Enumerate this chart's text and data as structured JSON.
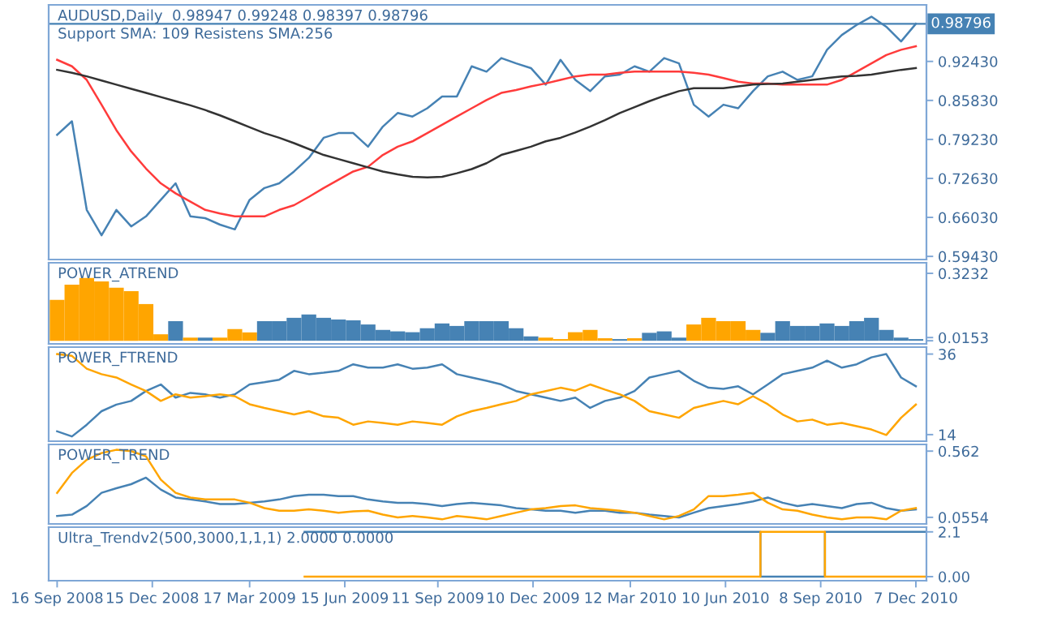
{
  "chart_data": [
    {
      "type": "line",
      "title": "AUDUSD,Daily  0.98947 0.99248 0.98397 0.98796",
      "subtitle": "Support SMA: 109 Resistens SMA:256",
      "x": [
        "2008-09-16",
        "2008-09-30",
        "2008-10-14",
        "2008-10-28",
        "2008-11-11",
        "2008-11-25",
        "2008-12-09",
        "2008-12-23",
        "2009-01-06",
        "2009-01-20",
        "2009-02-03",
        "2009-02-17",
        "2009-03-03",
        "2009-03-17",
        "2009-03-31",
        "2009-04-14",
        "2009-04-28",
        "2009-05-12",
        "2009-05-26",
        "2009-06-09",
        "2009-06-23",
        "2009-07-07",
        "2009-07-21",
        "2009-08-04",
        "2009-08-18",
        "2009-09-01",
        "2009-09-15",
        "2009-09-29",
        "2009-10-13",
        "2009-10-27",
        "2009-11-10",
        "2009-11-24",
        "2009-12-08",
        "2009-12-22",
        "2010-01-05",
        "2010-01-19",
        "2010-02-02",
        "2010-02-16",
        "2010-03-02",
        "2010-03-16",
        "2010-03-30",
        "2010-04-13",
        "2010-04-27",
        "2010-05-11",
        "2010-05-25",
        "2010-06-08",
        "2010-06-22",
        "2010-07-06",
        "2010-07-20",
        "2010-08-03",
        "2010-08-17",
        "2010-08-31",
        "2010-09-14",
        "2010-09-28",
        "2010-10-12",
        "2010-10-26",
        "2010-11-09",
        "2010-11-23",
        "2010-12-07"
      ],
      "series": [
        {
          "color": "#4682b4",
          "values": [
            0.8,
            0.823,
            0.673,
            0.63,
            0.673,
            0.645,
            0.662,
            0.69,
            0.718,
            0.662,
            0.659,
            0.648,
            0.64,
            0.69,
            0.71,
            0.718,
            0.738,
            0.761,
            0.795,
            0.803,
            0.803,
            0.78,
            0.814,
            0.837,
            0.831,
            0.845,
            0.865,
            0.865,
            0.916,
            0.907,
            0.93,
            0.921,
            0.913,
            0.885,
            0.927,
            0.893,
            0.874,
            0.899,
            0.902,
            0.916,
            0.907,
            0.93,
            0.921,
            0.851,
            0.831,
            0.851,
            0.845,
            0.874,
            0.899,
            0.907,
            0.893,
            0.899,
            0.944,
            0.969,
            0.986,
            1.0,
            0.983,
            0.958,
            0.988
          ]
        },
        {
          "color": "#ff3b3b",
          "values": [
            0.927,
            0.916,
            0.893,
            0.851,
            0.808,
            0.772,
            0.743,
            0.718,
            0.701,
            0.687,
            0.673,
            0.667,
            0.662,
            0.662,
            0.662,
            0.673,
            0.681,
            0.695,
            0.71,
            0.724,
            0.738,
            0.746,
            0.766,
            0.78,
            0.789,
            0.803,
            0.817,
            0.831,
            0.845,
            0.859,
            0.871,
            0.876,
            0.882,
            0.887,
            0.893,
            0.899,
            0.902,
            0.902,
            0.905,
            0.907,
            0.907,
            0.907,
            0.907,
            0.905,
            0.902,
            0.896,
            0.89,
            0.887,
            0.887,
            0.885,
            0.885,
            0.885,
            0.885,
            0.893,
            0.907,
            0.921,
            0.935,
            0.944,
            0.95
          ]
        },
        {
          "color": "#333333",
          "values": [
            0.91,
            0.905,
            0.899,
            0.892,
            0.885,
            0.878,
            0.871,
            0.864,
            0.857,
            0.85,
            0.842,
            0.833,
            0.823,
            0.813,
            0.803,
            0.795,
            0.786,
            0.776,
            0.766,
            0.759,
            0.752,
            0.745,
            0.738,
            0.733,
            0.729,
            0.728,
            0.729,
            0.735,
            0.742,
            0.752,
            0.766,
            0.773,
            0.78,
            0.789,
            0.795,
            0.804,
            0.814,
            0.825,
            0.837,
            0.847,
            0.857,
            0.866,
            0.874,
            0.879,
            0.879,
            0.879,
            0.882,
            0.885,
            0.886,
            0.887,
            0.89,
            0.893,
            0.896,
            0.899,
            0.9,
            0.902,
            0.906,
            0.91,
            0.913
          ]
        }
      ],
      "ylim": [
        0.589,
        1.02
      ],
      "yticks": [
        {
          "value": 0.9243,
          "label": "0.92430"
        },
        {
          "value": 0.8583,
          "label": "0.85830"
        },
        {
          "value": 0.7923,
          "label": "0.79230"
        },
        {
          "value": 0.7263,
          "label": "0.72630"
        },
        {
          "value": 0.6603,
          "label": "0.66030"
        },
        {
          "value": 0.5943,
          "label": "0.59430"
        }
      ],
      "ref_lines": [
        {
          "axis": "y",
          "value": 0.98796,
          "label": "0.98796",
          "color": "#4682b4"
        }
      ],
      "xlim": [
        "2008-09-08",
        "2010-12-17"
      ],
      "tick_labels": "y"
    },
    {
      "type": "bar",
      "title": "POWER_ATREND",
      "x": [
        "2008-09-16",
        "2008-09-30",
        "2008-10-14",
        "2008-10-28",
        "2008-11-11",
        "2008-11-25",
        "2008-12-09",
        "2008-12-23",
        "2009-01-06",
        "2009-01-20",
        "2009-02-03",
        "2009-02-17",
        "2009-03-03",
        "2009-03-17",
        "2009-03-31",
        "2009-04-14",
        "2009-04-28",
        "2009-05-12",
        "2009-05-26",
        "2009-06-09",
        "2009-06-23",
        "2009-07-07",
        "2009-07-21",
        "2009-08-04",
        "2009-08-18",
        "2009-09-01",
        "2009-09-15",
        "2009-09-29",
        "2009-10-13",
        "2009-10-27",
        "2009-11-10",
        "2009-11-24",
        "2009-12-08",
        "2009-12-22",
        "2010-01-05",
        "2010-01-19",
        "2010-02-02",
        "2010-02-16",
        "2010-03-02",
        "2010-03-16",
        "2010-03-30",
        "2010-04-13",
        "2010-04-27",
        "2010-05-11",
        "2010-05-25",
        "2010-06-08",
        "2010-06-22",
        "2010-07-06",
        "2010-07-20",
        "2010-08-03",
        "2010-08-17",
        "2010-08-31",
        "2010-09-14",
        "2010-09-28",
        "2010-10-12",
        "2010-10-26",
        "2010-11-09",
        "2010-11-23",
        "2010-12-07"
      ],
      "values": [
        0.196,
        0.269,
        0.301,
        0.285,
        0.254,
        0.238,
        0.176,
        0.031,
        0.094,
        0.015,
        0.015,
        0.015,
        0.056,
        0.04,
        0.094,
        0.094,
        0.11,
        0.126,
        0.11,
        0.102,
        0.098,
        0.078,
        0.052,
        0.045,
        0.041,
        0.06,
        0.083,
        0.071,
        0.094,
        0.094,
        0.094,
        0.06,
        0.021,
        0.015,
        0.008,
        0.041,
        0.052,
        0.012,
        0.008,
        0.012,
        0.038,
        0.045,
        0.015,
        0.078,
        0.11,
        0.094,
        0.094,
        0.052,
        0.038,
        0.094,
        0.071,
        0.071,
        0.083,
        0.071,
        0.094,
        0.11,
        0.052,
        0.015,
        0.008
      ],
      "colors": [
        "#ffa500",
        "#ffa500",
        "#ffa500",
        "#ffa500",
        "#ffa500",
        "#ffa500",
        "#ffa500",
        "#ffa500",
        "#4682b4",
        "#ffa500",
        "#4682b4",
        "#ffa500",
        "#ffa500",
        "#ffa500",
        "#4682b4",
        "#4682b4",
        "#4682b4",
        "#4682b4",
        "#4682b4",
        "#4682b4",
        "#4682b4",
        "#4682b4",
        "#4682b4",
        "#4682b4",
        "#4682b4",
        "#4682b4",
        "#4682b4",
        "#4682b4",
        "#4682b4",
        "#4682b4",
        "#4682b4",
        "#4682b4",
        "#4682b4",
        "#ffa500",
        "#ffa500",
        "#ffa500",
        "#ffa500",
        "#ffa500",
        "#4682b4",
        "#ffa500",
        "#4682b4",
        "#4682b4",
        "#4682b4",
        "#ffa500",
        "#ffa500",
        "#ffa500",
        "#ffa500",
        "#ffa500",
        "#4682b4",
        "#4682b4",
        "#4682b4",
        "#4682b4",
        "#4682b4",
        "#4682b4",
        "#4682b4",
        "#4682b4",
        "#4682b4",
        "#4682b4",
        "#4682b4"
      ],
      "ylim": [
        -0.015,
        0.374
      ],
      "yticks": [
        0.3232,
        0.0153,
        {
          "value": 0,
          "label": null
        }
      ],
      "xlim": [
        "2008-09-08",
        "2010-12-17"
      ],
      "tick_labels": "y"
    },
    {
      "type": "line",
      "title": "POWER_FTREND",
      "x": [
        "2008-09-16",
        "2008-09-30",
        "2008-10-14",
        "2008-10-28",
        "2008-11-11",
        "2008-11-25",
        "2008-12-09",
        "2008-12-23",
        "2009-01-06",
        "2009-01-20",
        "2009-02-03",
        "2009-02-17",
        "2009-03-03",
        "2009-03-17",
        "2009-03-31",
        "2009-04-14",
        "2009-04-28",
        "2009-05-12",
        "2009-05-26",
        "2009-06-09",
        "2009-06-23",
        "2009-07-07",
        "2009-07-21",
        "2009-08-04",
        "2009-08-18",
        "2009-09-01",
        "2009-09-15",
        "2009-09-29",
        "2009-10-13",
        "2009-10-27",
        "2009-11-10",
        "2009-11-24",
        "2009-12-08",
        "2009-12-22",
        "2010-01-05",
        "2010-01-19",
        "2010-02-02",
        "2010-02-16",
        "2010-03-02",
        "2010-03-16",
        "2010-03-30",
        "2010-04-13",
        "2010-04-27",
        "2010-05-11",
        "2010-05-25",
        "2010-06-08",
        "2010-06-22",
        "2010-07-06",
        "2010-07-20",
        "2010-08-03",
        "2010-08-17",
        "2010-08-31",
        "2010-09-14",
        "2010-09-28",
        "2010-10-12",
        "2010-10-26",
        "2010-11-09",
        "2010-11-23",
        "2010-12-07"
      ],
      "series": [
        {
          "color": "#4682b4",
          "values": [
            14.9,
            13.5,
            16.7,
            20.4,
            22.2,
            23.2,
            25.9,
            27.7,
            24.1,
            25.4,
            25.0,
            24.1,
            25.0,
            27.7,
            28.3,
            29.0,
            31.4,
            30.5,
            30.9,
            31.4,
            33.2,
            32.3,
            32.3,
            33.2,
            32.0,
            32.3,
            33.2,
            30.5,
            29.6,
            28.7,
            27.7,
            25.9,
            25.0,
            24.1,
            23.2,
            24.1,
            21.3,
            23.2,
            24.1,
            25.9,
            29.6,
            30.5,
            31.4,
            28.7,
            26.8,
            26.5,
            27.2,
            25.0,
            27.7,
            30.5,
            31.4,
            32.3,
            34.2,
            32.3,
            33.2,
            35.1,
            36.0,
            29.6,
            27.2
          ]
        },
        {
          "color": "#ffa500",
          "values": [
            36.0,
            35.5,
            32.0,
            30.5,
            29.6,
            27.7,
            25.9,
            23.2,
            25.0,
            24.1,
            24.5,
            25.0,
            24.5,
            22.3,
            21.3,
            20.4,
            19.5,
            20.4,
            19.0,
            18.6,
            16.7,
            17.6,
            17.2,
            16.7,
            17.6,
            17.2,
            16.7,
            19.0,
            20.4,
            21.3,
            22.3,
            23.2,
            25.0,
            25.9,
            26.8,
            26.0,
            27.7,
            26.3,
            25.0,
            23.2,
            20.4,
            19.5,
            18.6,
            21.3,
            22.3,
            23.2,
            22.3,
            24.5,
            22.3,
            19.5,
            17.6,
            18.1,
            16.7,
            17.2,
            16.3,
            15.4,
            13.9,
            18.6,
            22.2
          ]
        }
      ],
      "ylim": [
        12.2,
        37.9
      ],
      "yticks": [
        36,
        14
      ],
      "xlim": [
        "2008-09-08",
        "2010-12-17"
      ],
      "tick_labels": "y"
    },
    {
      "type": "line",
      "title": "POWER_TREND",
      "x": [
        "2008-09-16",
        "2008-09-30",
        "2008-10-14",
        "2008-10-28",
        "2008-11-11",
        "2008-11-25",
        "2008-12-09",
        "2008-12-23",
        "2009-01-06",
        "2009-01-20",
        "2009-02-03",
        "2009-02-17",
        "2009-03-03",
        "2009-03-17",
        "2009-03-31",
        "2009-04-14",
        "2009-04-28",
        "2009-05-12",
        "2009-05-26",
        "2009-06-09",
        "2009-06-23",
        "2009-07-07",
        "2009-07-21",
        "2009-08-04",
        "2009-08-18",
        "2009-09-01",
        "2009-09-15",
        "2009-09-29",
        "2009-10-13",
        "2009-10-27",
        "2009-11-10",
        "2009-11-24",
        "2009-12-08",
        "2009-12-22",
        "2010-01-05",
        "2010-01-19",
        "2010-02-02",
        "2010-02-16",
        "2010-03-02",
        "2010-03-16",
        "2010-03-30",
        "2010-04-13",
        "2010-04-27",
        "2010-05-11",
        "2010-05-25",
        "2010-06-08",
        "2010-06-22",
        "2010-07-06",
        "2010-07-20",
        "2010-08-03",
        "2010-08-17",
        "2010-08-31",
        "2010-09-14",
        "2010-09-28",
        "2010-10-12",
        "2010-10-26",
        "2010-11-09",
        "2010-11-23",
        "2010-12-07"
      ],
      "series": [
        {
          "color": "#4682b4",
          "values": [
            0.066,
            0.076,
            0.142,
            0.243,
            0.278,
            0.309,
            0.359,
            0.268,
            0.207,
            0.192,
            0.177,
            0.157,
            0.157,
            0.167,
            0.177,
            0.192,
            0.218,
            0.228,
            0.228,
            0.218,
            0.218,
            0.192,
            0.177,
            0.167,
            0.167,
            0.157,
            0.142,
            0.157,
            0.167,
            0.157,
            0.147,
            0.126,
            0.116,
            0.106,
            0.106,
            0.091,
            0.106,
            0.106,
            0.091,
            0.091,
            0.076,
            0.066,
            0.055,
            0.091,
            0.126,
            0.142,
            0.157,
            0.177,
            0.207,
            0.167,
            0.142,
            0.157,
            0.142,
            0.126,
            0.157,
            0.167,
            0.126,
            0.106,
            0.116
          ]
        },
        {
          "color": "#ffa500",
          "values": [
            0.243,
            0.395,
            0.496,
            0.547,
            0.572,
            0.562,
            0.522,
            0.344,
            0.243,
            0.207,
            0.192,
            0.192,
            0.192,
            0.167,
            0.126,
            0.106,
            0.106,
            0.116,
            0.106,
            0.091,
            0.101,
            0.106,
            0.076,
            0.055,
            0.066,
            0.055,
            0.04,
            0.066,
            0.055,
            0.04,
            0.066,
            0.091,
            0.116,
            0.126,
            0.142,
            0.147,
            0.126,
            0.116,
            0.106,
            0.091,
            0.066,
            0.04,
            0.066,
            0.116,
            0.218,
            0.218,
            0.228,
            0.243,
            0.167,
            0.116,
            0.106,
            0.076,
            0.055,
            0.04,
            0.055,
            0.055,
            0.04,
            0.106,
            0.126
          ]
        }
      ],
      "ylim": [
        0.005,
        0.613
      ],
      "yticks": [
        0.562,
        0.0554
      ],
      "xlim": [
        "2008-09-08",
        "2010-12-17"
      ],
      "tick_labels": "y"
    },
    {
      "type": "step",
      "title": "Ultra_Trendv2(500,3000,1,1,1) 2.0000 0.0000",
      "series": [
        {
          "color": "#4682b4",
          "x": [
            "2009-05-08",
            "2010-07-13",
            "2010-09-12",
            "2010-12-17"
          ],
          "values": [
            2.1,
            0,
            2.1,
            2.1
          ]
        },
        {
          "color": "#ffa500",
          "x": [
            "2009-05-08",
            "2010-07-13",
            "2010-09-12",
            "2010-12-17"
          ],
          "values": [
            0,
            2.1,
            0,
            0
          ]
        }
      ],
      "ylim": [
        -0.19,
        2.32
      ],
      "yticks": [
        2.1,
        {
          "value": 0,
          "label": "0.00"
        }
      ],
      "xlim": [
        "2008-09-08",
        "2010-12-17"
      ],
      "xticks": [
        {
          "value": "2008-09-16",
          "label": "16 Sep 2008"
        },
        {
          "value": "2008-12-15",
          "label": "15 Dec 2008"
        },
        {
          "value": "2009-03-17",
          "label": "17 Mar 2009"
        },
        {
          "value": "2009-06-15",
          "label": "15 Jun 2009"
        },
        {
          "value": "2009-09-11",
          "label": "11 Sep 2009"
        },
        {
          "value": "2009-12-10",
          "label": "10 Dec 2009"
        },
        {
          "value": "2010-03-12",
          "label": "12 Mar 2010"
        },
        {
          "value": "2010-06-10",
          "label": "10 Jun 2010"
        },
        {
          "value": "2010-09-08",
          "label": "8 Sep 2010"
        },
        {
          "value": "2010-12-07",
          "label": "7 Dec 2010"
        }
      ]
    }
  ]
}
